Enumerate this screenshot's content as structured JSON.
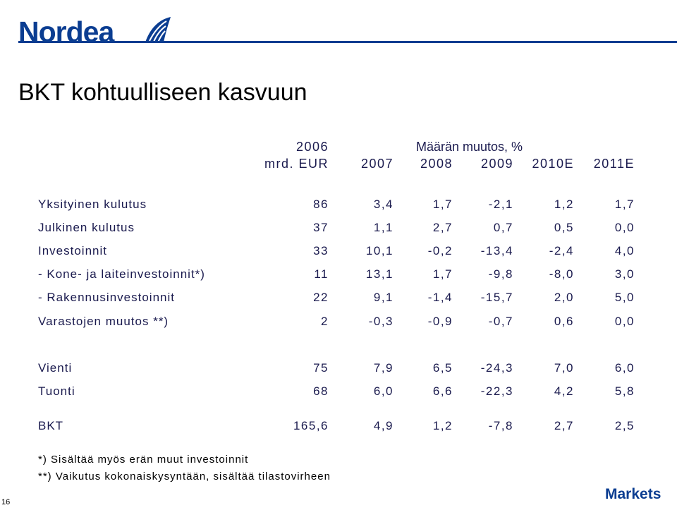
{
  "brand": {
    "logo_text": "Nordea",
    "footer_brand": "Markets"
  },
  "title": "BKT kohtuulliseen kasvuun",
  "header": {
    "row1": {
      "col1": "2006",
      "group": "Määrän muutos, %"
    },
    "row2": [
      "mrd. EUR",
      "2007",
      "2008",
      "2009",
      "2010E",
      "2011E"
    ]
  },
  "rows": [
    {
      "label": "Yksityinen kulutus",
      "values": [
        "86",
        "3,4",
        "1,7",
        "-2,1",
        "1,2",
        "1,7"
      ]
    },
    {
      "label": "Julkinen kulutus",
      "values": [
        "37",
        "1,1",
        "2,7",
        "0,7",
        "0,5",
        "0,0"
      ]
    },
    {
      "label": "Investoinnit",
      "values": [
        "33",
        "10,1",
        "-0,2",
        "-13,4",
        "-2,4",
        "4,0"
      ]
    },
    {
      "label": "- Kone- ja laiteinvestoinnit*)",
      "values": [
        "11",
        "13,1",
        "1,7",
        "-9,8",
        "-8,0",
        "3,0"
      ]
    },
    {
      "label": "- Rakennusinvestoinnit",
      "values": [
        "22",
        "9,1",
        "-1,4",
        "-15,7",
        "2,0",
        "5,0"
      ]
    },
    {
      "label": "Varastojen muutos **)",
      "values": [
        "2",
        "-0,3",
        "-0,9",
        "-0,7",
        "0,6",
        "0,0"
      ]
    },
    {
      "label": "Vienti",
      "values": [
        "75",
        "7,9",
        "6,5",
        "-24,3",
        "7,0",
        "6,0"
      ]
    },
    {
      "label": "Tuonti",
      "values": [
        "68",
        "6,0",
        "6,6",
        "-22,3",
        "4,2",
        "5,8"
      ]
    },
    {
      "label": "BKT",
      "values": [
        "165,6",
        "4,9",
        "1,2",
        "-7,8",
        "2,7",
        "2,5"
      ]
    }
  ],
  "footnotes": [
    "*) Sisältää myös erän muut investoinnit",
    "**) Vaikutus kokonaiskysyntään, sisältää tilastovirheen"
  ],
  "page_number": "16",
  "colors": {
    "brand_blue": "#0b3d91",
    "text": "#1a1a4e"
  }
}
